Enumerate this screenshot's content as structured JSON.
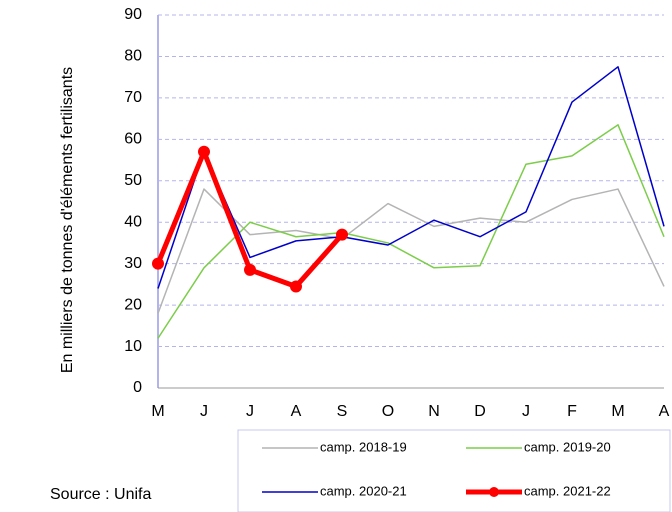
{
  "chart_data": {
    "type": "line",
    "y_label": "En milliers de tonnes d'éléments fertilisants",
    "source": "Source : Unifa",
    "categories": [
      "M",
      "J",
      "J",
      "A",
      "S",
      "O",
      "N",
      "D",
      "J",
      "F",
      "M",
      "A"
    ],
    "series": [
      {
        "name": "camp. 2018-19",
        "color": "#b4b4b4",
        "width": 1.5,
        "values": [
          18,
          48,
          37,
          38,
          36,
          44.5,
          39,
          41,
          40,
          45.5,
          48,
          24.5
        ]
      },
      {
        "name": "camp. 2019-20",
        "color": "#7ccd4a",
        "width": 1.5,
        "values": [
          12,
          29,
          40,
          36.5,
          37.5,
          35,
          29,
          29.5,
          54,
          56,
          63.5,
          36.5
        ]
      },
      {
        "name": "camp. 2020-21",
        "color": "#0000cc",
        "width": 1.5,
        "values": [
          24,
          57,
          31.5,
          35.5,
          36.5,
          34.5,
          40.5,
          36.5,
          42.5,
          69,
          77.5,
          39
        ]
      },
      {
        "name": "camp. 2021-22",
        "color": "#ff0000",
        "width": 5,
        "markers": true,
        "values": [
          30,
          57,
          28.5,
          24.5,
          37,
          null,
          null,
          null,
          null,
          null,
          null,
          null
        ]
      }
    ],
    "ylim": [
      0,
      90
    ],
    "yticks": [
      0,
      10,
      20,
      30,
      40,
      50,
      60,
      70,
      80,
      90
    ],
    "grid": true
  }
}
